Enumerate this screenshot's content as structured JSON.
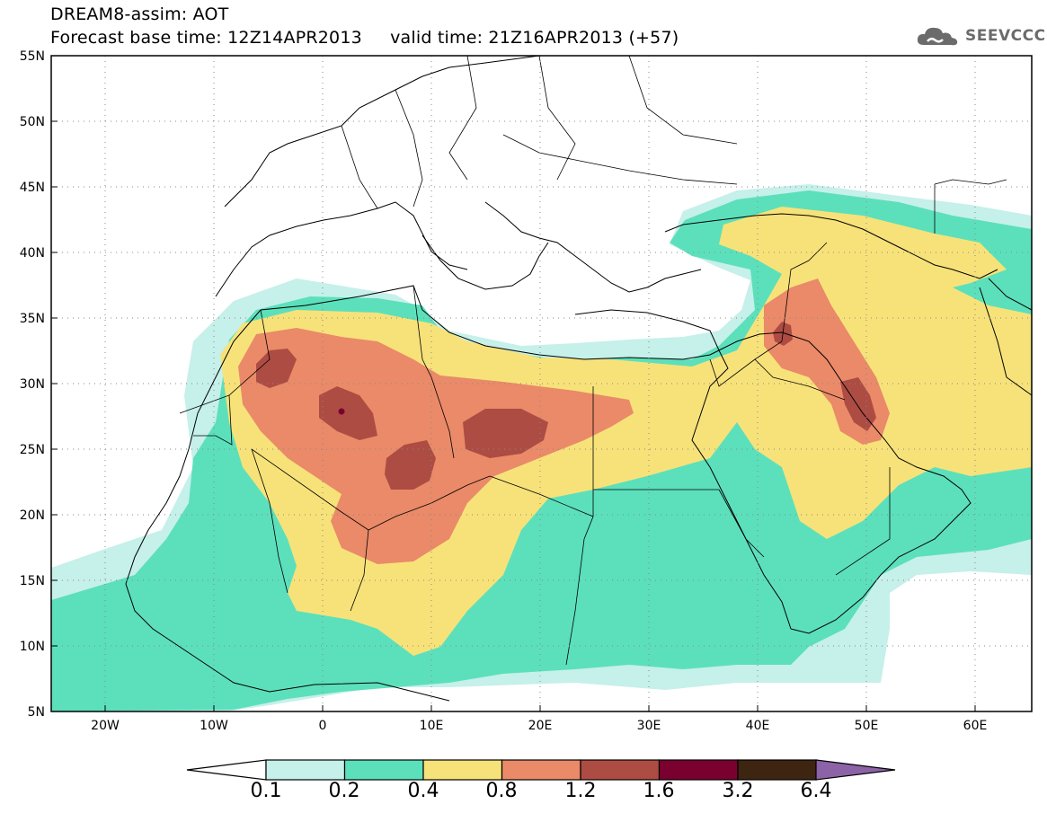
{
  "title_line1": "DREAM8-assim: AOT",
  "title_line2": "Forecast base time: 12Z14APR2013     valid time: 21Z16APR2013 (+57)",
  "logo": {
    "text": "SEEVCCC",
    "icon": "cloud-icon",
    "color": "#6b6b6b"
  },
  "map": {
    "lon_range": [
      -25,
      65
    ],
    "lat_range": [
      5,
      55
    ],
    "lat_ticks": [
      "5N",
      "10N",
      "15N",
      "20N",
      "25N",
      "30N",
      "35N",
      "40N",
      "45N",
      "50N",
      "55N"
    ],
    "lon_ticks": [
      "20W",
      "10W",
      "0",
      "10E",
      "20E",
      "30E",
      "40E",
      "50E",
      "60E"
    ],
    "gridlines": true
  },
  "colorbar": {
    "levels": [
      "0.1",
      "0.2",
      "0.4",
      "0.8",
      "1.2",
      "1.6",
      "3.2",
      "6.4"
    ],
    "colors": [
      "#c6f0ea",
      "#5ce0bb",
      "#f7e27a",
      "#ea8a68",
      "#ad4c43",
      "#7a0030",
      "#3e2512",
      "#8b63a6"
    ],
    "under_color": "#ffffff",
    "over_color": "#8b63a6"
  }
}
